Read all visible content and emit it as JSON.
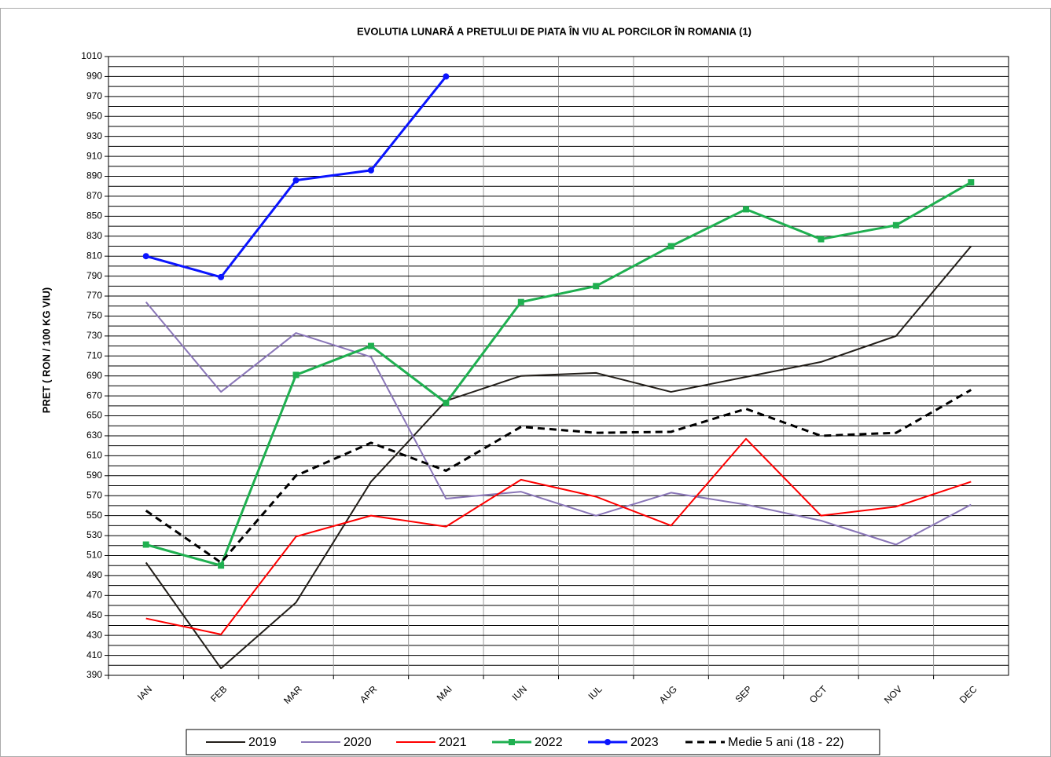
{
  "chart_data": {
    "type": "line",
    "title": "EVOLUTIA  LUNARĂ  A PRETULUI  DE PIATA ÎN VIU AL PORCILOR ÎN ROMANIA  (1)",
    "y_label": "PRET ( RON / 100 KG VIU)",
    "categories": [
      "IAN",
      "FEB",
      "MAR",
      "APR",
      "MAI",
      "IUN",
      "IUL",
      "AUG",
      "SEP",
      "OCT",
      "NOV",
      "DEC"
    ],
    "ylim": [
      390,
      1010
    ],
    "yticks": [
      390,
      410,
      430,
      450,
      470,
      490,
      510,
      530,
      550,
      570,
      590,
      610,
      630,
      650,
      670,
      690,
      710,
      730,
      750,
      770,
      790,
      810,
      830,
      850,
      870,
      890,
      910,
      930,
      950,
      970,
      990,
      1010
    ],
    "grid": true,
    "legend": "bottom",
    "series": [
      {
        "name": "2019",
        "color": "#231f1a",
        "width": 2,
        "values": [
          503,
          397,
          463,
          584,
          665,
          690,
          693,
          674,
          689,
          704,
          730,
          820
        ]
      },
      {
        "name": "2020",
        "color": "#8a76b8",
        "width": 2,
        "values": [
          764,
          674,
          733,
          709,
          567,
          574,
          550,
          573,
          561,
          545,
          521,
          561
        ]
      },
      {
        "name": "2021",
        "color": "#ff0000",
        "width": 2,
        "values": [
          447,
          431,
          529,
          550,
          539,
          586,
          569,
          540,
          627,
          550,
          559,
          584
        ]
      },
      {
        "name": "2022",
        "color": "#1fb050",
        "width": 3,
        "marker": "square",
        "values": [
          521,
          500,
          691,
          720,
          663,
          764,
          780,
          820,
          857,
          827,
          841,
          884
        ]
      },
      {
        "name": "2023",
        "color": "#0a14ff",
        "width": 3,
        "marker": "circle",
        "values": [
          810,
          789,
          886,
          896,
          990,
          null,
          null,
          null,
          null,
          null,
          null,
          null
        ]
      },
      {
        "name": "Medie 5 ani (18 - 22)",
        "color": "#000000",
        "width": 3,
        "dash": true,
        "values": [
          555,
          503,
          590,
          623,
          595,
          639,
          633,
          634,
          657,
          630,
          633,
          676
        ]
      }
    ]
  }
}
